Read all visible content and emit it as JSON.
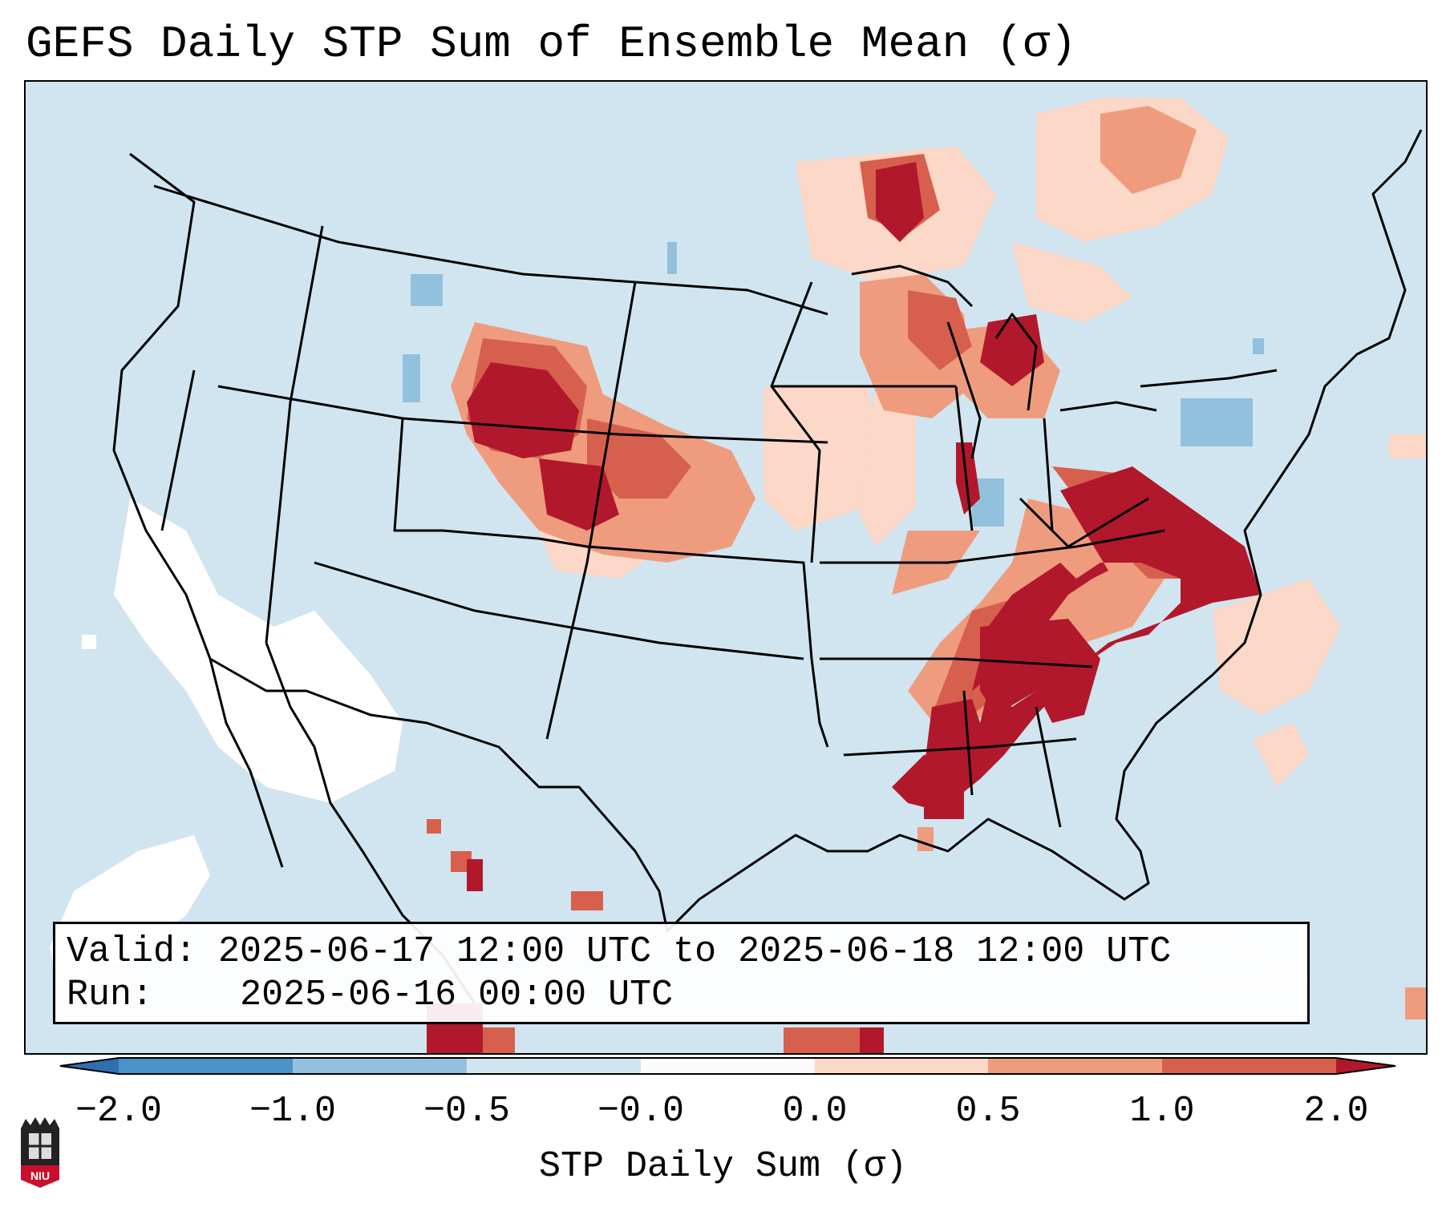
{
  "title": "GEFS Daily STP Sum of Ensemble Mean (σ)",
  "info": {
    "valid_label": "Valid:",
    "valid_value": "2025-06-17 12:00 UTC to 2025-06-18 12:00 UTC",
    "run_label": "Run:",
    "run_value": "2025-06-16 00:00 UTC"
  },
  "colorbar": {
    "label": "STP Daily Sum (σ)",
    "ticks": [
      "−2.0",
      "−1.0",
      "−0.5",
      "−0.0",
      "0.0",
      "0.5",
      "1.0",
      "2.0"
    ],
    "colors": [
      "#2f6fb0",
      "#4a92c7",
      "#92c1dd",
      "#d1e5f0",
      "#fbfbfb",
      "#fbd8c7",
      "#ef9c7e",
      "#d6604d",
      "#b2182b"
    ]
  },
  "logo": {
    "text": "NIU"
  }
}
